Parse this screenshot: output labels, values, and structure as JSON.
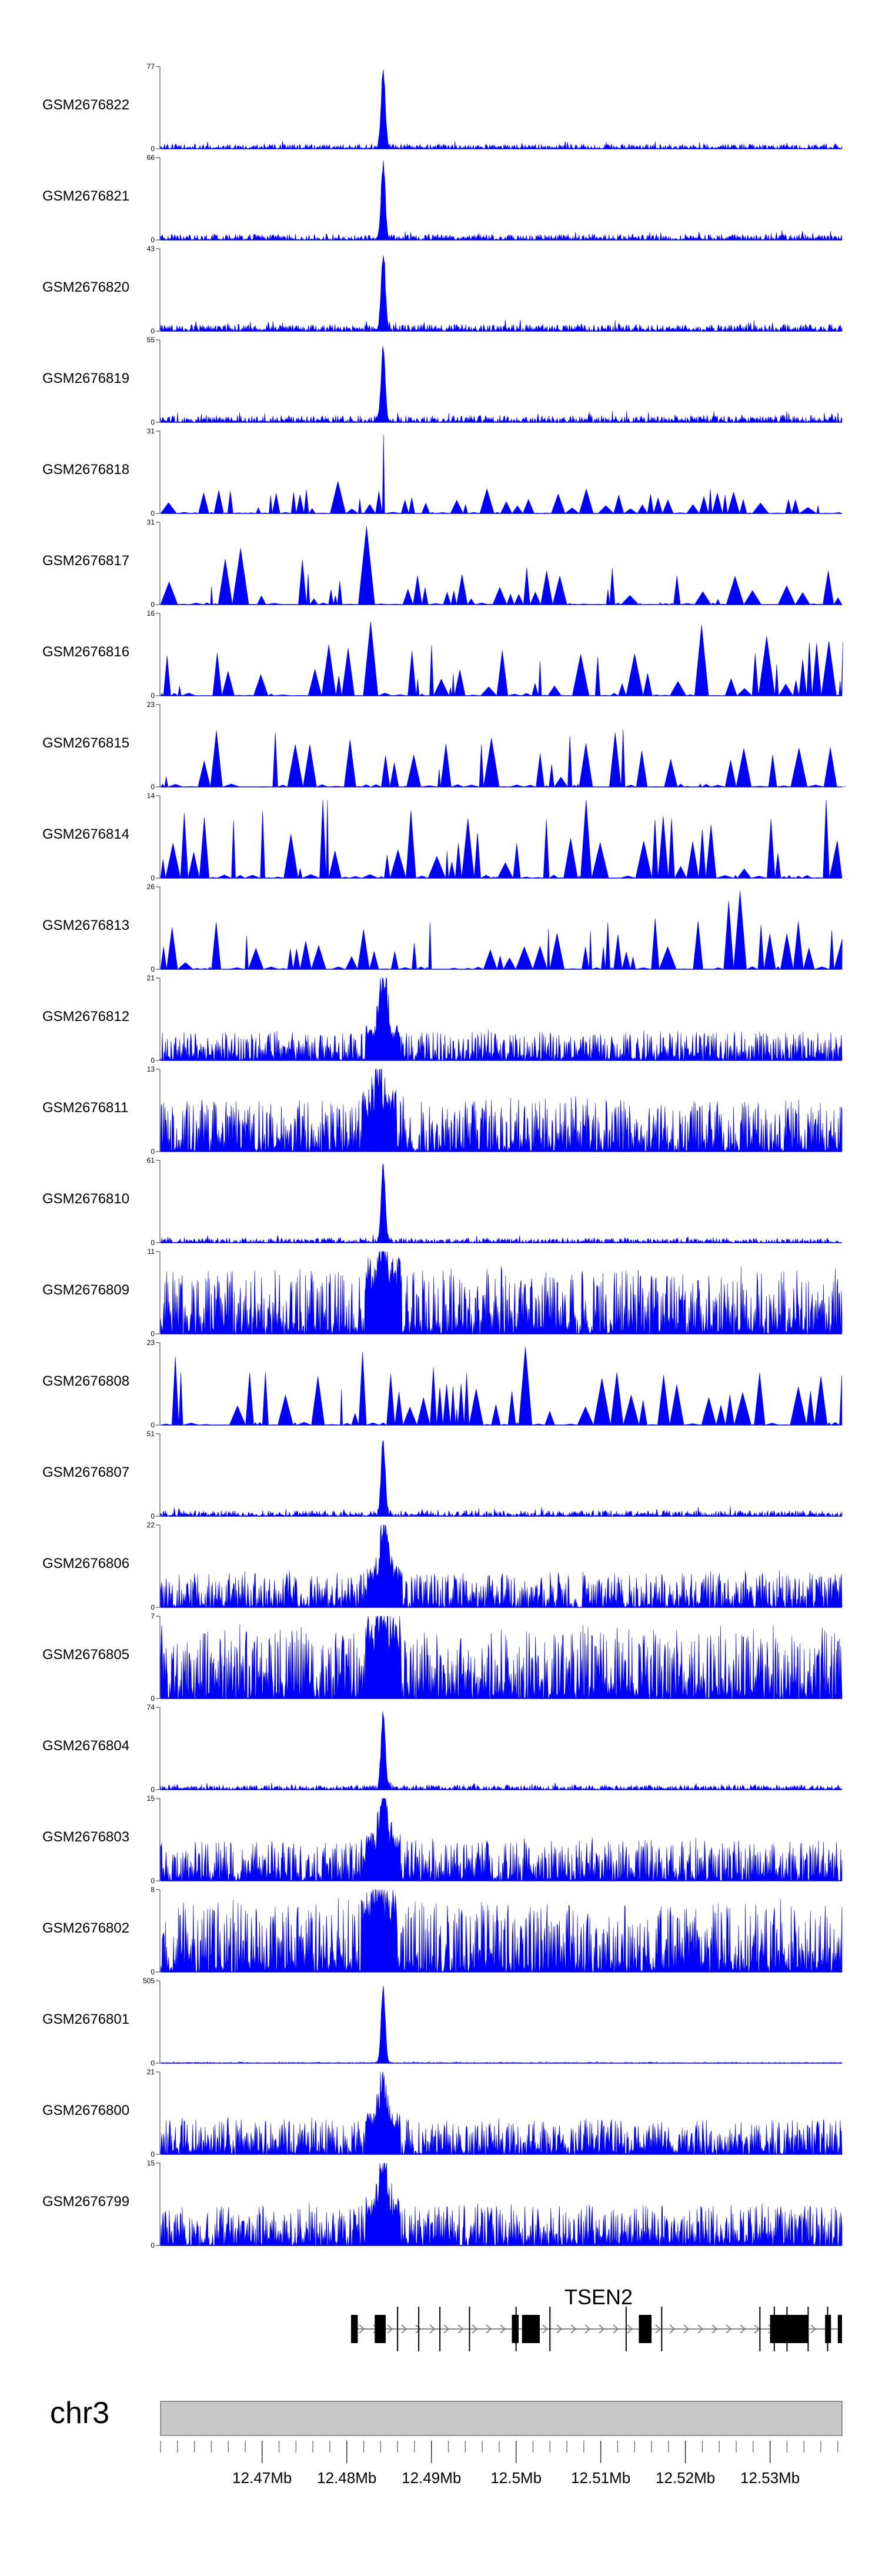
{
  "chart_data": {
    "type": "area",
    "chromosome": "chr3",
    "x_range_mb": [
      12.458,
      12.5385
    ],
    "ymin_label": "0",
    "track_color": "#0000ff",
    "tracks": [
      {
        "name": "GSM2676822",
        "ymax": 77,
        "peak_mb": 12.4843,
        "peak_frac": 1.0,
        "bg": 0.05,
        "style": "flat"
      },
      {
        "name": "GSM2676821",
        "ymax": 66,
        "peak_mb": 12.4843,
        "peak_frac": 0.95,
        "bg": 0.06,
        "style": "flat"
      },
      {
        "name": "GSM2676820",
        "ymax": 43,
        "peak_mb": 12.4843,
        "peak_frac": 0.95,
        "bg": 0.07,
        "style": "flat"
      },
      {
        "name": "GSM2676819",
        "ymax": 55,
        "peak_mb": 12.4843,
        "peak_frac": 0.95,
        "bg": 0.07,
        "style": "flat"
      },
      {
        "name": "GSM2676818",
        "ymax": 31,
        "peak_mb": 12.4843,
        "peak_frac": 0.95,
        "bg": 0.2,
        "style": "spiky"
      },
      {
        "name": "GSM2676817",
        "ymax": 31,
        "peak_mb": 12.4825,
        "peak_frac": 0.95,
        "bg": 0.3,
        "style": "spiky"
      },
      {
        "name": "GSM2676816",
        "ymax": 16,
        "peak_mb": 12.4833,
        "peak_frac": 0.9,
        "bg": 0.45,
        "style": "spiky"
      },
      {
        "name": "GSM2676815",
        "ymax": 23,
        "peak_mb": 12.4764,
        "peak_frac": 0.95,
        "bg": 0.45,
        "style": "spiky"
      },
      {
        "name": "GSM2676814",
        "ymax": 14,
        "peak_mb": 12.4775,
        "peak_frac": 0.95,
        "bg": 0.55,
        "style": "spiky"
      },
      {
        "name": "GSM2676813",
        "ymax": 26,
        "peak_mb": 12.5265,
        "peak_frac": 0.95,
        "bg": 0.4,
        "style": "spiky"
      },
      {
        "name": "GSM2676812",
        "ymax": 21,
        "peak_mb": 12.4843,
        "peak_frac": 0.95,
        "bg": 0.25,
        "style": "busy"
      },
      {
        "name": "GSM2676811",
        "ymax": 13,
        "peak_mb": 12.4838,
        "peak_frac": 0.8,
        "bg": 0.45,
        "style": "busy"
      },
      {
        "name": "GSM2676810",
        "ymax": 61,
        "peak_mb": 12.4843,
        "peak_frac": 0.95,
        "bg": 0.05,
        "style": "flat"
      },
      {
        "name": "GSM2676809",
        "ymax": 11,
        "peak_mb": 12.4843,
        "peak_frac": 0.95,
        "bg": 0.55,
        "style": "busy"
      },
      {
        "name": "GSM2676808",
        "ymax": 23,
        "peak_mb": 12.5012,
        "peak_frac": 0.95,
        "bg": 0.45,
        "style": "spiky"
      },
      {
        "name": "GSM2676807",
        "ymax": 51,
        "peak_mb": 12.4843,
        "peak_frac": 0.95,
        "bg": 0.06,
        "style": "flat"
      },
      {
        "name": "GSM2676806",
        "ymax": 22,
        "peak_mb": 12.4845,
        "peak_frac": 0.95,
        "bg": 0.3,
        "style": "busy"
      },
      {
        "name": "GSM2676805",
        "ymax": 7,
        "peak_mb": 12.4843,
        "peak_frac": 0.95,
        "bg": 0.6,
        "style": "busy"
      },
      {
        "name": "GSM2676804",
        "ymax": 74,
        "peak_mb": 12.4843,
        "peak_frac": 0.95,
        "bg": 0.05,
        "style": "flat"
      },
      {
        "name": "GSM2676803",
        "ymax": 15,
        "peak_mb": 12.4843,
        "peak_frac": 0.95,
        "bg": 0.35,
        "style": "busy"
      },
      {
        "name": "GSM2676802",
        "ymax": 8,
        "peak_mb": 12.4838,
        "peak_frac": 0.95,
        "bg": 0.6,
        "style": "busy"
      },
      {
        "name": "GSM2676801",
        "ymax": 505,
        "peak_mb": 12.4843,
        "peak_frac": 0.95,
        "bg": 0.01,
        "style": "flat"
      },
      {
        "name": "GSM2676800",
        "ymax": 21,
        "peak_mb": 12.4843,
        "peak_frac": 0.75,
        "bg": 0.3,
        "style": "busy"
      },
      {
        "name": "GSM2676799",
        "ymax": 15,
        "peak_mb": 12.4843,
        "peak_frac": 0.95,
        "bg": 0.35,
        "style": "busy"
      }
    ],
    "gene": {
      "name": "TSEN2",
      "start_mb": 12.4805,
      "end_mb": 12.5385,
      "strand": "+",
      "exons_mb": [
        [
          12.4805,
          12.4813
        ],
        [
          12.4833,
          12.4846
        ],
        [
          12.4995,
          12.5003
        ],
        [
          12.5007,
          12.5028
        ],
        [
          12.5145,
          12.516
        ],
        [
          12.53,
          12.5345
        ],
        [
          12.5365,
          12.5372
        ],
        [
          12.538,
          12.5385
        ]
      ],
      "thin_lines_mb": [
        12.486,
        12.4885,
        12.491,
        12.4945,
        12.5,
        12.504,
        12.513,
        12.5172,
        12.5288,
        12.5305,
        12.532,
        12.5345,
        12.5368
      ]
    },
    "axis": {
      "tick_labels": [
        "12.47Mb",
        "12.48Mb",
        "12.49Mb",
        "12.5Mb",
        "12.51Mb",
        "12.52Mb",
        "12.53Mb"
      ],
      "tick_values_mb": [
        12.47,
        12.48,
        12.49,
        12.5,
        12.51,
        12.52,
        12.53
      ],
      "minor_step_mb": 0.002
    }
  }
}
